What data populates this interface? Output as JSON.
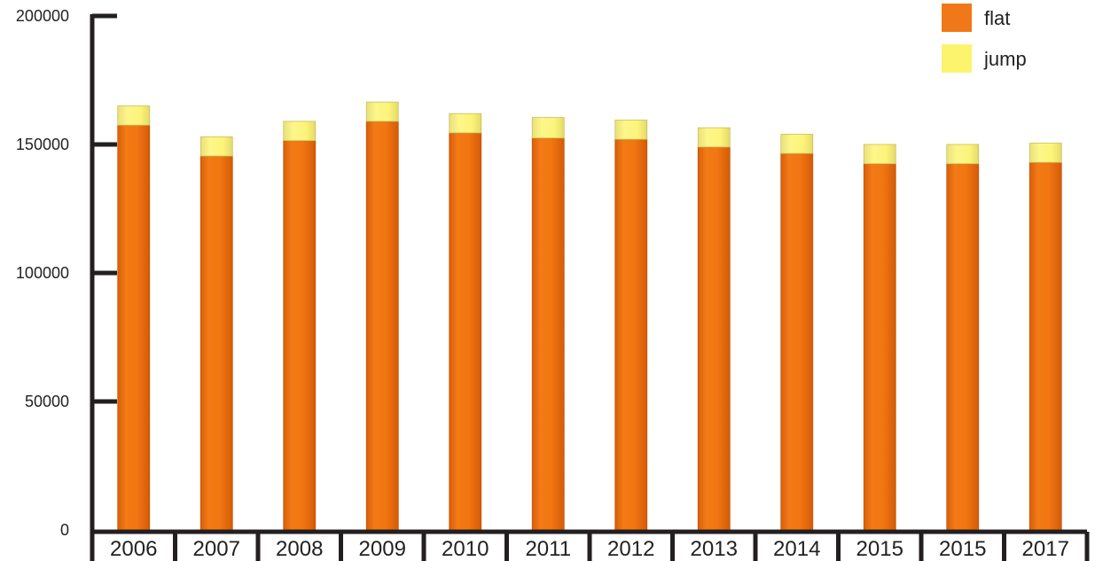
{
  "chart_data": {
    "type": "bar",
    "stacked": true,
    "categories": [
      "2006",
      "2007",
      "2008",
      "2009",
      "2010",
      "2011",
      "2012",
      "2013",
      "2014",
      "2015",
      "2015",
      "2017"
    ],
    "series": [
      {
        "name": "flat",
        "color": "#f07818",
        "values": [
          157500,
          145500,
          151500,
          159000,
          154500,
          152500,
          152000,
          149000,
          146500,
          142500,
          142500,
          143000
        ]
      },
      {
        "name": "jump",
        "color": "#fcf46c",
        "values": [
          7500,
          7500,
          7500,
          7500,
          7500,
          8000,
          7500,
          7500,
          7500,
          7500,
          7500,
          7500
        ]
      }
    ],
    "ylim": [
      0,
      200000
    ],
    "yticks": [
      0,
      50000,
      100000,
      150000,
      200000
    ],
    "title": "",
    "xlabel": "",
    "ylabel": "",
    "legend": "top-right",
    "grid": false
  }
}
